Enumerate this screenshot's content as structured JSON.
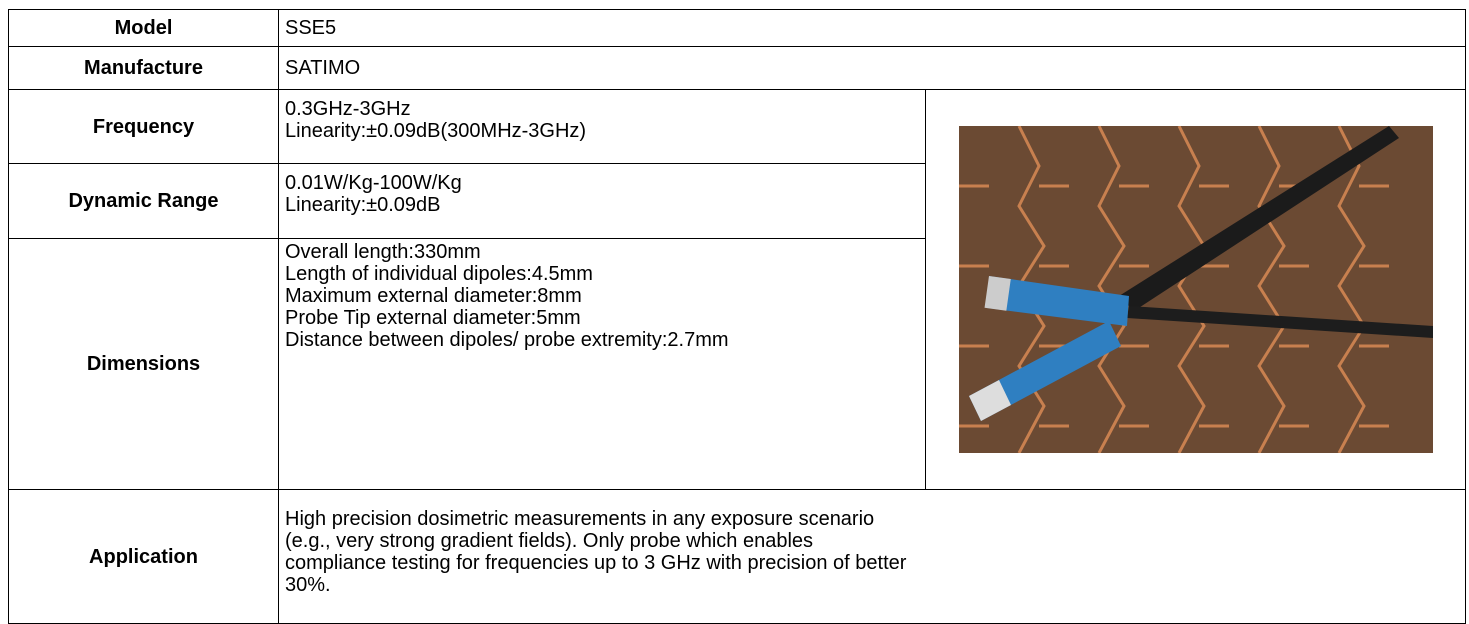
{
  "table": {
    "rows": [
      {
        "label": "Model",
        "lines": [
          "SSE5"
        ]
      },
      {
        "label": "Manufacture",
        "lines": [
          "SATIMO"
        ]
      },
      {
        "label": "Frequency",
        "lines": [
          "0.3GHz-3GHz",
          "Linearity:±0.09dB(300MHz-3GHz)"
        ]
      },
      {
        "label": "Dynamic Range",
        "lines": [
          "0.01W/Kg-100W/Kg",
          "Linearity:±0.09dB"
        ]
      },
      {
        "label": "Dimensions",
        "lines": [
          "Overall length:330mm",
          "Length of individual dipoles:4.5mm",
          "Maximum external diameter:8mm",
          "Probe Tip external diameter:5mm",
          "Distance between dipoles/ probe extremity:2.7mm"
        ]
      },
      {
        "label": "Application",
        "lines": [
          "High precision dosimetric measurements in any exposure scenario",
          "(e.g., very strong gradient fields). Only probe which enables",
          "compliance testing for frequencies up to 3 GHz with precision of better",
          "30%."
        ]
      }
    ]
  }
}
